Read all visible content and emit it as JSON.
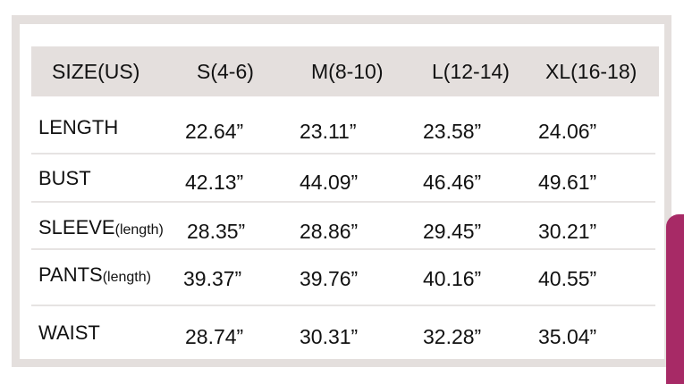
{
  "header": {
    "cols": [
      "SIZE(US)",
      "S(4-6)",
      "M(8-10)",
      "L(12-14)",
      "XL(16-18)"
    ]
  },
  "rows": [
    {
      "label": "LENGTH",
      "suffix": "",
      "values": [
        "22.64”",
        "23.11”",
        "23.58”",
        "24.06”"
      ]
    },
    {
      "label": "BUST",
      "suffix": "",
      "values": [
        "42.13”",
        "44.09”",
        "46.46”",
        "49.61”"
      ]
    },
    {
      "label": "SLEEVE",
      "suffix": "(length)",
      "values": [
        "28.35”",
        "28.86”",
        "29.45”",
        "30.21”"
      ]
    },
    {
      "label": "PANTS",
      "suffix": "(length)",
      "values": [
        "39.37”",
        "39.76”",
        "40.16”",
        "40.55”"
      ]
    },
    {
      "label": "WAIST",
      "suffix": "",
      "values": [
        "28.74”",
        "30.31”",
        "32.28”",
        "35.04”"
      ]
    }
  ],
  "colors": {
    "frame": "#e4dfdd",
    "garment": "#a72a66"
  }
}
